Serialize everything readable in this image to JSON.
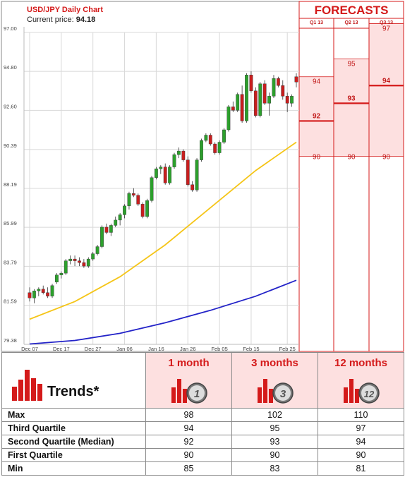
{
  "chart_title": "USD/JPY Daily Chart",
  "current_price_label": "Current price:",
  "current_price_value": "94.18",
  "forecasts_title": "FORECASTS",
  "quarters": [
    "Q1 13",
    "Q2 13",
    "Q3 13"
  ],
  "colors": {
    "accent_red": "#d41a1a",
    "forecast_fill": "#fde0e0",
    "candle_up": "#2ca02c",
    "candle_down": "#c81e1e",
    "ma_yellow": "#f5c518",
    "ma_blue": "#2323c8"
  },
  "chart_data": [
    {
      "type": "candlestick",
      "title": "USD/JPY Daily Chart",
      "y_ticks": [
        "97.00",
        "94.80",
        "92.60",
        "90.39",
        "88.19",
        "85.99",
        "83.79",
        "81.59",
        "79.38"
      ],
      "ylim": [
        79.38,
        97.0
      ],
      "x_ticks": [
        "Dec 07",
        "Dec 17",
        "Dec 27",
        "Jan 06",
        "Jan 16",
        "Jan 26",
        "Feb 05",
        "Feb 15",
        "Feb 25"
      ],
      "candles": [
        [
          82.3,
          82.6,
          81.8,
          82.0
        ],
        [
          82.0,
          82.5,
          81.7,
          82.4
        ],
        [
          82.4,
          82.6,
          82.1,
          82.5
        ],
        [
          82.5,
          82.7,
          82.2,
          82.3
        ],
        [
          82.3,
          82.6,
          82.0,
          82.1
        ],
        [
          82.1,
          82.8,
          82.0,
          82.7
        ],
        [
          82.9,
          83.4,
          82.8,
          83.3
        ],
        [
          83.3,
          83.5,
          83.1,
          83.4
        ],
        [
          83.4,
          84.2,
          83.3,
          84.1
        ],
        [
          84.1,
          84.4,
          83.9,
          84.2
        ],
        [
          84.2,
          84.4,
          83.8,
          84.1
        ],
        [
          84.1,
          84.3,
          83.8,
          84.0
        ],
        [
          84.0,
          84.2,
          83.7,
          83.8
        ],
        [
          83.8,
          84.3,
          83.7,
          84.2
        ],
        [
          84.2,
          84.6,
          84.1,
          84.5
        ],
        [
          84.5,
          85.0,
          84.4,
          84.9
        ],
        [
          84.9,
          86.1,
          84.8,
          86.0
        ],
        [
          86.0,
          86.2,
          85.6,
          85.7
        ],
        [
          85.7,
          86.2,
          85.5,
          86.1
        ],
        [
          86.1,
          86.6,
          86.0,
          86.4
        ],
        [
          86.4,
          86.8,
          86.1,
          86.7
        ],
        [
          86.7,
          87.3,
          86.5,
          87.2
        ],
        [
          87.2,
          88.0,
          87.0,
          87.9
        ],
        [
          87.9,
          88.2,
          87.7,
          87.8
        ],
        [
          87.8,
          87.9,
          87.2,
          87.3
        ],
        [
          87.3,
          87.4,
          86.5,
          86.6
        ],
        [
          86.6,
          87.6,
          86.5,
          87.5
        ],
        [
          87.5,
          88.9,
          87.4,
          88.8
        ],
        [
          88.8,
          89.4,
          88.7,
          89.3
        ],
        [
          89.3,
          89.5,
          89.0,
          89.4
        ],
        [
          89.4,
          89.6,
          88.4,
          88.5
        ],
        [
          88.5,
          89.5,
          88.4,
          89.4
        ],
        [
          89.4,
          90.2,
          89.3,
          90.1
        ],
        [
          90.1,
          90.5,
          89.9,
          90.3
        ],
        [
          90.3,
          90.4,
          89.7,
          89.8
        ],
        [
          89.8,
          90.0,
          88.3,
          88.4
        ],
        [
          88.4,
          88.6,
          88.0,
          88.1
        ],
        [
          88.1,
          89.9,
          88.0,
          89.8
        ],
        [
          89.8,
          91.0,
          89.7,
          90.9
        ],
        [
          90.9,
          91.3,
          90.8,
          91.2
        ],
        [
          91.2,
          91.3,
          90.6,
          90.7
        ],
        [
          90.7,
          90.8,
          90.1,
          90.2
        ],
        [
          90.2,
          90.9,
          90.1,
          90.8
        ],
        [
          90.8,
          91.6,
          90.7,
          91.5
        ],
        [
          91.5,
          92.9,
          91.4,
          92.8
        ],
        [
          92.8,
          93.1,
          92.5,
          92.6
        ],
        [
          92.6,
          93.6,
          92.5,
          93.5
        ],
        [
          93.5,
          94.0,
          91.9,
          92.0
        ],
        [
          92.0,
          94.7,
          91.9,
          94.6
        ],
        [
          94.6,
          94.8,
          93.6,
          93.7
        ],
        [
          93.7,
          93.9,
          92.2,
          92.3
        ],
        [
          92.3,
          94.2,
          92.2,
          94.1
        ],
        [
          94.1,
          94.3,
          92.9,
          93.0
        ],
        [
          93.0,
          93.6,
          92.3,
          93.4
        ],
        [
          93.4,
          94.6,
          93.3,
          94.4
        ],
        [
          94.4,
          94.5,
          93.9,
          94.0
        ],
        [
          94.0,
          94.3,
          93.2,
          93.4
        ],
        [
          93.4,
          93.6,
          92.5,
          93.0
        ],
        [
          93.0,
          93.5,
          92.8,
          93.4
        ],
        [
          94.5,
          94.7,
          93.9,
          94.2
        ]
      ],
      "ma_yellow": [
        [
          0,
          80.8
        ],
        [
          10,
          81.8
        ],
        [
          20,
          83.2
        ],
        [
          30,
          85.0
        ],
        [
          40,
          87.1
        ],
        [
          50,
          89.2
        ],
        [
          59,
          90.8
        ]
      ],
      "ma_blue": [
        [
          0,
          79.4
        ],
        [
          10,
          79.6
        ],
        [
          20,
          80.0
        ],
        [
          30,
          80.6
        ],
        [
          40,
          81.3
        ],
        [
          50,
          82.1
        ],
        [
          59,
          83.0
        ]
      ]
    },
    {
      "type": "forecast-levels",
      "title": "FORECASTS",
      "columns": [
        {
          "label": "Q1 13",
          "labels_shown": [
            "94",
            "92",
            "90"
          ],
          "median": 92
        },
        {
          "label": "Q2 13",
          "labels_shown": [
            "95",
            "93",
            "90"
          ],
          "median": 93
        },
        {
          "label": "Q3 13",
          "labels_shown": [
            "97",
            "94",
            "90"
          ],
          "median": 94
        }
      ]
    },
    {
      "type": "table",
      "title": "Trends*",
      "columns": [
        "1 month",
        "3 months",
        "12 months"
      ],
      "icon_numbers": [
        "1",
        "3",
        "12"
      ],
      "rows": [
        {
          "label": "Max",
          "values": [
            "98",
            "102",
            "110"
          ]
        },
        {
          "label": "Third Quartile",
          "values": [
            "94",
            "95",
            "97"
          ]
        },
        {
          "label": "Second Quartile (Median)",
          "values": [
            "92",
            "93",
            "94"
          ]
        },
        {
          "label": "First Quartile",
          "values": [
            "90",
            "90",
            "90"
          ]
        },
        {
          "label": "Min",
          "values": [
            "85",
            "83",
            "81"
          ]
        }
      ]
    }
  ]
}
